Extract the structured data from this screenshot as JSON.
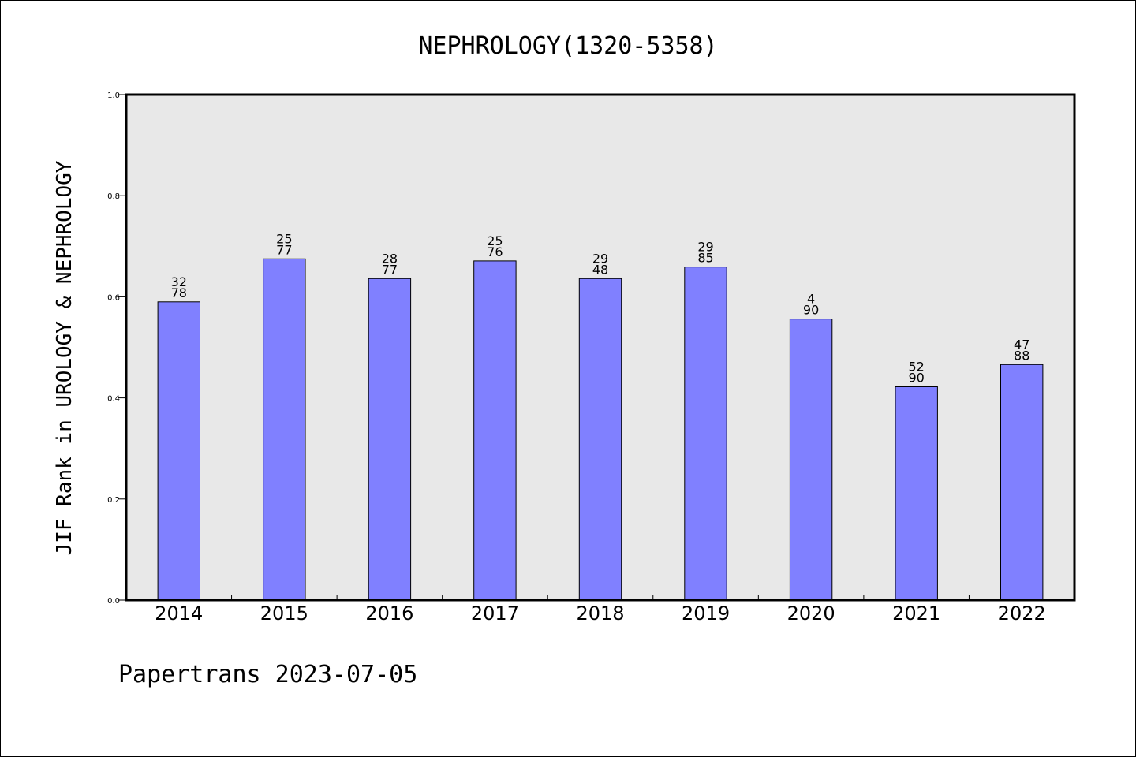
{
  "chart_data": {
    "type": "bar",
    "title": "NEPHROLOGY(1320-5358)",
    "ylabel": "JIF Rank in UROLOGY & NEPHROLOGY",
    "xlabel": "",
    "ylim": [
      0,
      1.0
    ],
    "yticks": [
      "0.0",
      "0.2",
      "0.4",
      "0.6",
      "0.8",
      "1.0"
    ],
    "grid": false,
    "bar_color": "#8080ff",
    "background_color": "#e8e8e8",
    "categories": [
      "2014",
      "2015",
      "2016",
      "2017",
      "2018",
      "2019",
      "2020",
      "2021",
      "2022"
    ],
    "values": [
      0.59,
      0.675,
      0.636,
      0.671,
      0.636,
      0.659,
      0.556,
      0.422,
      0.466
    ],
    "labels_top": [
      "32",
      "25",
      "28",
      "25",
      "29",
      "29",
      "4",
      "52",
      "47"
    ],
    "labels_bottom": [
      "78",
      "77",
      "77",
      "76",
      "48",
      "85",
      "90",
      "90",
      "88"
    ]
  },
  "footer": "Papertrans 2023-07-05"
}
